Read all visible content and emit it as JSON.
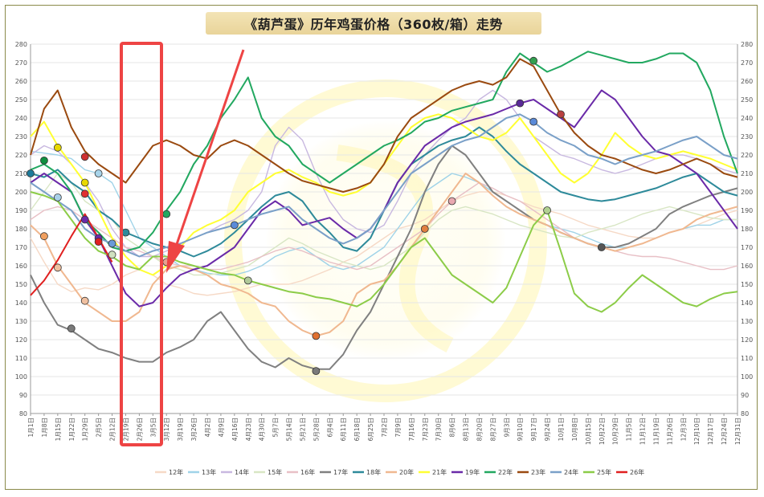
{
  "chart_data": {
    "type": "line",
    "title": "《葫芦蛋》历年鸡蛋价格（360枚/箱）走势",
    "ylim": [
      80,
      280
    ],
    "yticks": [
      80,
      90,
      100,
      110,
      120,
      130,
      140,
      150,
      160,
      170,
      180,
      190,
      200,
      210,
      220,
      230,
      240,
      250,
      260,
      270,
      280
    ],
    "grid": true,
    "legend_position": "bottom",
    "x_labels": [
      "1月1日",
      "1月8日",
      "1月15日",
      "1月22日",
      "1月29日",
      "2月5日",
      "2月12日",
      "2月19日",
      "2月26日",
      "3月5日",
      "3月12日",
      "3月19日",
      "3月26日",
      "4月2日",
      "4月9日",
      "4月16日",
      "4月23日",
      "4月30日",
      "5月7日",
      "5月14日",
      "5月21日",
      "5月28日",
      "6月4日",
      "6月11日",
      "6月18日",
      "6月25日",
      "7月2日",
      "7月9日",
      "7月16日",
      "7月23日",
      "7月30日",
      "8月6日",
      "8月13日",
      "8月20日",
      "8月27日",
      "9月3日",
      "9月10日",
      "9月17日",
      "9月24日",
      "10月1日",
      "10月8日",
      "10月15日",
      "10月22日",
      "10月29日",
      "11月5日",
      "11月12日",
      "11月19日",
      "11月26日",
      "12月3日",
      "12月10日",
      "12月17日",
      "12月24日",
      "12月31日"
    ],
    "series": [
      {
        "name": "12年",
        "color": "#f6d9c6",
        "values": [
          175,
          162,
          150,
          146,
          148,
          147,
          150,
          155,
          158,
          155,
          150,
          148,
          145,
          144,
          145,
          146,
          148,
          150,
          150,
          150,
          152,
          155,
          158,
          162,
          165,
          170,
          175,
          180,
          182,
          185,
          190,
          195,
          198,
          200,
          200,
          198,
          195,
          192,
          190,
          188,
          185,
          182,
          180,
          178,
          176,
          175,
          175,
          178,
          180,
          182,
          185,
          188,
          190
        ],
        "marks": []
      },
      {
        "name": "13年",
        "color": "#9fd3e8",
        "values": [
          222,
          221,
          220,
          218,
          212,
          210,
          205,
          190,
          175,
          170,
          165,
          160,
          158,
          156,
          155,
          155,
          157,
          160,
          165,
          168,
          170,
          165,
          160,
          158,
          160,
          165,
          170,
          180,
          190,
          200,
          205,
          210,
          208,
          205,
          200,
          195,
          190,
          185,
          182,
          180,
          178,
          175,
          172,
          170,
          170,
          172,
          175,
          178,
          180,
          182,
          182,
          185,
          185
        ],
        "marks": [
          {
            "value": 210,
            "color": "#a8d4ea"
          }
        ]
      },
      {
        "name": "14年",
        "color": "#c8b8e0",
        "values": [
          220,
          225,
          222,
          215,
          205,
          195,
          180,
          170,
          165,
          165,
          168,
          172,
          175,
          178,
          182,
          185,
          190,
          200,
          225,
          235,
          228,
          210,
          195,
          185,
          180,
          178,
          182,
          195,
          210,
          220,
          228,
          235,
          240,
          250,
          255,
          250,
          240,
          230,
          225,
          220,
          218,
          215,
          212,
          210,
          212,
          215,
          218,
          220,
          220,
          218,
          215,
          212,
          210
        ],
        "marks": []
      },
      {
        "name": "15年",
        "color": "#d8e6c4",
        "values": [
          190,
          200,
          210,
          205,
          195,
          190,
          185,
          175,
          170,
          165,
          160,
          158,
          155,
          155,
          156,
          158,
          160,
          165,
          170,
          175,
          172,
          168,
          165,
          162,
          160,
          158,
          160,
          165,
          170,
          178,
          185,
          190,
          192,
          190,
          188,
          185,
          182,
          180,
          178,
          176,
          175,
          178,
          180,
          182,
          185,
          188,
          190,
          192,
          190,
          188,
          186,
          185,
          185
        ],
        "marks": []
      },
      {
        "name": "16年",
        "color": "#e8c0c6",
        "values": [
          185,
          190,
          192,
          190,
          185,
          180,
          175,
          170,
          168,
          165,
          162,
          160,
          160,
          158,
          158,
          160,
          162,
          165,
          168,
          170,
          168,
          165,
          162,
          160,
          158,
          160,
          165,
          170,
          175,
          180,
          188,
          195,
          200,
          205,
          202,
          198,
          195,
          190,
          185,
          180,
          175,
          172,
          170,
          168,
          166,
          165,
          165,
          164,
          162,
          160,
          158,
          158,
          160
        ],
        "marks": [
          {
            "value": 195,
            "color": "#e8a8b0"
          },
          {
            "value": 162,
            "color": "#e8a090"
          }
        ]
      },
      {
        "name": "17年",
        "color": "#808080",
        "values": [
          155,
          140,
          128,
          125,
          120,
          115,
          113,
          110,
          108,
          108,
          113,
          116,
          120,
          130,
          135,
          125,
          115,
          108,
          105,
          110,
          106,
          104,
          104,
          112,
          125,
          135,
          150,
          165,
          180,
          200,
          215,
          225,
          220,
          210,
          200,
          195,
          190,
          185,
          182,
          178,
          175,
          172,
          170,
          170,
          172,
          176,
          180,
          188,
          192,
          195,
          198,
          200,
          202
        ],
        "marks": [
          {
            "value": 126,
            "color": "#7a7a7a"
          },
          {
            "value": 103,
            "color": "#7a7a7a"
          },
          {
            "value": 170,
            "color": "#555555"
          }
        ]
      },
      {
        "name": "18年",
        "color": "#2e8a9a",
        "values": [
          210,
          208,
          212,
          205,
          200,
          190,
          185,
          178,
          175,
          172,
          170,
          168,
          165,
          168,
          172,
          178,
          185,
          192,
          198,
          200,
          195,
          185,
          178,
          170,
          168,
          175,
          190,
          205,
          215,
          220,
          225,
          228,
          230,
          235,
          230,
          222,
          215,
          210,
          205,
          200,
          198,
          196,
          195,
          196,
          198,
          200,
          202,
          205,
          208,
          210,
          205,
          200,
          198
        ],
        "marks": [
          {
            "value": 178,
            "color": "#2e8a9a"
          },
          {
            "value": 210,
            "color": "#1e7a9a"
          }
        ]
      },
      {
        "name": "20年",
        "color": "#f0b890",
        "values": [
          182,
          175,
          160,
          150,
          140,
          135,
          130,
          130,
          135,
          150,
          158,
          160,
          158,
          155,
          150,
          148,
          145,
          140,
          138,
          130,
          125,
          122,
          124,
          130,
          145,
          150,
          152,
          160,
          170,
          180,
          190,
          200,
          210,
          205,
          198,
          192,
          188,
          185,
          182,
          178,
          175,
          172,
          170,
          168,
          170,
          172,
          175,
          178,
          180,
          185,
          188,
          190,
          192
        ],
        "marks": [
          {
            "value": 141,
            "color": "#f0c0a0"
          },
          {
            "value": 176,
            "color": "#f0a060"
          },
          {
            "value": 159,
            "color": "#f0c0a0"
          },
          {
            "value": 122,
            "color": "#e07030"
          },
          {
            "value": 180,
            "color": "#e08040"
          }
        ]
      },
      {
        "name": "21年",
        "color": "#ffff33",
        "values": [
          230,
          238,
          225,
          215,
          205,
          190,
          175,
          165,
          158,
          155,
          160,
          170,
          178,
          182,
          185,
          190,
          200,
          205,
          210,
          212,
          208,
          205,
          200,
          198,
          200,
          205,
          215,
          225,
          235,
          240,
          242,
          240,
          235,
          230,
          228,
          232,
          240,
          230,
          220,
          210,
          205,
          210,
          220,
          232,
          225,
          220,
          218,
          220,
          222,
          220,
          218,
          215,
          212
        ],
        "marks": [
          {
            "value": 205,
            "color": "#e8d800"
          },
          {
            "value": 224,
            "color": "#e8d800"
          }
        ]
      },
      {
        "name": "19年",
        "color": "#6a2aa8",
        "values": [
          205,
          210,
          205,
          200,
          185,
          175,
          160,
          145,
          138,
          140,
          148,
          155,
          158,
          160,
          165,
          170,
          180,
          190,
          195,
          190,
          182,
          184,
          186,
          180,
          175,
          180,
          190,
          205,
          215,
          225,
          230,
          235,
          238,
          240,
          242,
          245,
          248,
          250,
          245,
          240,
          235,
          245,
          255,
          250,
          240,
          230,
          222,
          220,
          215,
          210,
          200,
          190,
          180
        ],
        "marks": [
          {
            "value": 175,
            "color": "#6a2aa8"
          },
          {
            "value": 185,
            "color": "#6a2aa8"
          },
          {
            "value": 248,
            "color": "#5a2a98"
          }
        ]
      },
      {
        "name": "22年",
        "color": "#22a860",
        "values": [
          212,
          215,
          210,
          200,
          185,
          178,
          170,
          168,
          170,
          178,
          190,
          200,
          215,
          225,
          240,
          250,
          262,
          240,
          230,
          225,
          215,
          210,
          205,
          210,
          215,
          220,
          225,
          228,
          232,
          238,
          240,
          244,
          246,
          248,
          250,
          265,
          275,
          270,
          265,
          268,
          272,
          276,
          274,
          272,
          270,
          270,
          272,
          275,
          275,
          270,
          255,
          230,
          210
        ],
        "marks": [
          {
            "value": 188,
            "color": "#22a860"
          },
          {
            "value": 217,
            "color": "#109040"
          },
          {
            "value": 271,
            "color": "#33a050"
          }
        ]
      },
      {
        "name": "23年",
        "color": "#9a4a10",
        "values": [
          220,
          245,
          255,
          235,
          222,
          215,
          210,
          205,
          215,
          225,
          228,
          225,
          220,
          218,
          225,
          228,
          225,
          220,
          215,
          210,
          206,
          204,
          202,
          200,
          202,
          205,
          215,
          230,
          240,
          245,
          250,
          255,
          258,
          260,
          258,
          262,
          272,
          268,
          255,
          242,
          232,
          225,
          220,
          218,
          215,
          212,
          210,
          212,
          215,
          218,
          215,
          210,
          208
        ],
        "marks": [
          {
            "value": 242,
            "color": "#b84040"
          }
        ]
      },
      {
        "name": "24年",
        "color": "#7aa0c8",
        "values": [
          205,
          200,
          195,
          190,
          180,
          175,
          172,
          168,
          165,
          168,
          170,
          172,
          175,
          178,
          180,
          182,
          185,
          188,
          190,
          192,
          185,
          180,
          175,
          172,
          175,
          180,
          190,
          200,
          210,
          215,
          220,
          225,
          228,
          230,
          235,
          240,
          242,
          238,
          232,
          228,
          225,
          220,
          218,
          215,
          218,
          220,
          222,
          225,
          228,
          230,
          225,
          220,
          218
        ],
        "marks": [
          {
            "value": 172,
            "color": "#6a9ad8"
          },
          {
            "value": 182,
            "color": "#5a8ad8"
          },
          {
            "value": 238,
            "color": "#5a8ad8"
          },
          {
            "value": 197,
            "color": "#a8d0e8"
          }
        ]
      },
      {
        "name": "25年",
        "color": "#8ccc48",
        "values": [
          200,
          198,
          195,
          185,
          175,
          168,
          165,
          160,
          158,
          165,
          165,
          162,
          160,
          158,
          156,
          155,
          152,
          150,
          148,
          146,
          145,
          143,
          142,
          140,
          138,
          142,
          150,
          160,
          170,
          175,
          165,
          155,
          150,
          145,
          140,
          148,
          165,
          182,
          190,
          168,
          145,
          138,
          135,
          140,
          148,
          155,
          150,
          145,
          140,
          138,
          142,
          145,
          146
        ],
        "marks": [
          {
            "value": 152,
            "color": "#b0c898"
          },
          {
            "value": 190,
            "color": "#b0d090"
          },
          {
            "value": 166,
            "color": "#d0e0c0"
          }
        ]
      },
      {
        "name": "26年",
        "color": "#e02020",
        "values": [
          144,
          152,
          163,
          176,
          188,
          175,
          162
        ],
        "marks": [
          {
            "value": 219,
            "color": "#d03030"
          },
          {
            "value": 173,
            "color": "#e02020"
          },
          {
            "value": 199,
            "color": "#e03030"
          }
        ]
      }
    ]
  }
}
